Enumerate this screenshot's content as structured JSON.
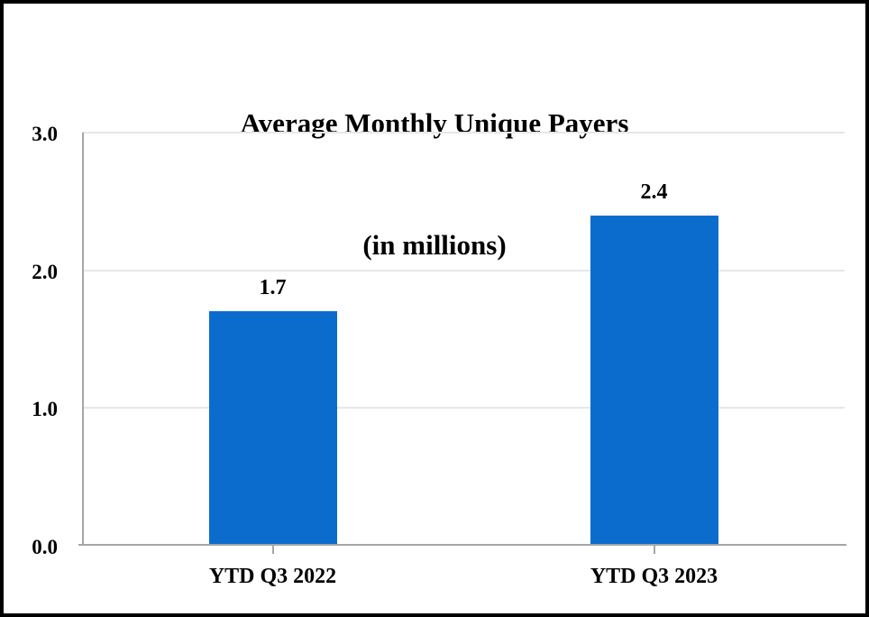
{
  "window": {
    "background": "#ffffff",
    "frame_border_color": "#000000"
  },
  "chart_data": {
    "type": "bar",
    "title": "Average Monthly Unique Payers",
    "subtitle": "(in millions)",
    "categories": [
      "YTD Q3 2022",
      "YTD Q3 2023"
    ],
    "values": [
      1.7,
      2.4
    ],
    "value_labels": [
      "1.7",
      "2.4"
    ],
    "series": [
      {
        "name": "Average Monthly Unique Payers",
        "values": [
          1.7,
          2.4
        ]
      }
    ],
    "xlabel": "",
    "ylabel": "",
    "ylim": [
      0,
      3
    ],
    "yticks": [
      {
        "value": 0,
        "label": "0.0"
      },
      {
        "value": 1,
        "label": "1.0"
      },
      {
        "value": 2,
        "label": "2.0"
      },
      {
        "value": 3,
        "label": "3.0"
      }
    ],
    "grid": "horizontal",
    "legend": "none"
  },
  "colors": {
    "bar": "#0b6cce",
    "gridline": "#e7e7e7",
    "axis": "#a6a6a6",
    "text": "#000000",
    "frame": "#000000",
    "background": "#ffffff"
  }
}
